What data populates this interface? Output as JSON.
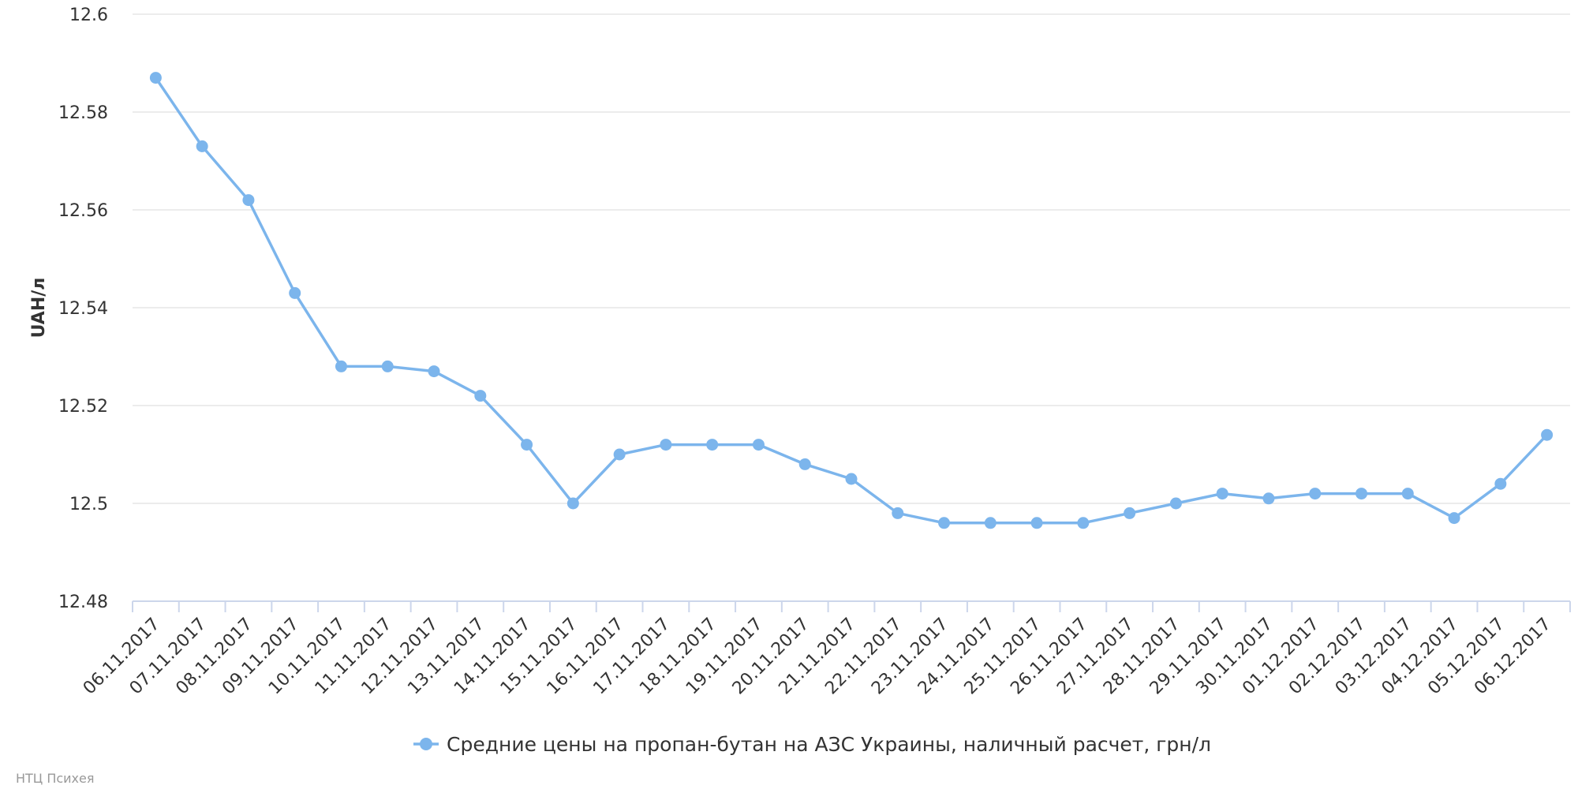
{
  "chart_data": {
    "type": "line",
    "ylabel": "UAH/л",
    "ylim": [
      12.48,
      12.6
    ],
    "yticks": [
      "12.48",
      "12.5",
      "12.52",
      "12.54",
      "12.56",
      "12.58",
      "12.6"
    ],
    "grid": true,
    "legend_position": "bottom-center",
    "categories": [
      "06.11.2017",
      "07.11.2017",
      "08.11.2017",
      "09.11.2017",
      "10.11.2017",
      "11.11.2017",
      "12.11.2017",
      "13.11.2017",
      "14.11.2017",
      "15.11.2017",
      "16.11.2017",
      "17.11.2017",
      "18.11.2017",
      "19.11.2017",
      "20.11.2017",
      "21.11.2017",
      "22.11.2017",
      "23.11.2017",
      "24.11.2017",
      "25.11.2017",
      "26.11.2017",
      "27.11.2017",
      "28.11.2017",
      "29.11.2017",
      "30.11.2017",
      "01.12.2017",
      "02.12.2017",
      "03.12.2017",
      "04.12.2017",
      "05.12.2017",
      "06.12.2017"
    ],
    "series": [
      {
        "name": "Средние цены на пропан-бутан на АЗС Украины, наличный расчет, грн/л",
        "color": "#7cb5ec",
        "values": [
          12.587,
          12.573,
          12.562,
          12.543,
          12.528,
          12.528,
          12.527,
          12.522,
          12.512,
          12.5,
          12.51,
          12.512,
          12.512,
          12.512,
          12.508,
          12.505,
          12.498,
          12.496,
          12.496,
          12.496,
          12.496,
          12.498,
          12.5,
          12.502,
          12.501,
          12.502,
          12.502,
          12.502,
          12.497,
          12.504,
          12.514
        ]
      }
    ]
  },
  "credit": "НТЦ Психея",
  "colors": {
    "grid": "#e6e6e6",
    "axis": "#ccd6eb",
    "text": "#333333",
    "credit": "#999999"
  }
}
